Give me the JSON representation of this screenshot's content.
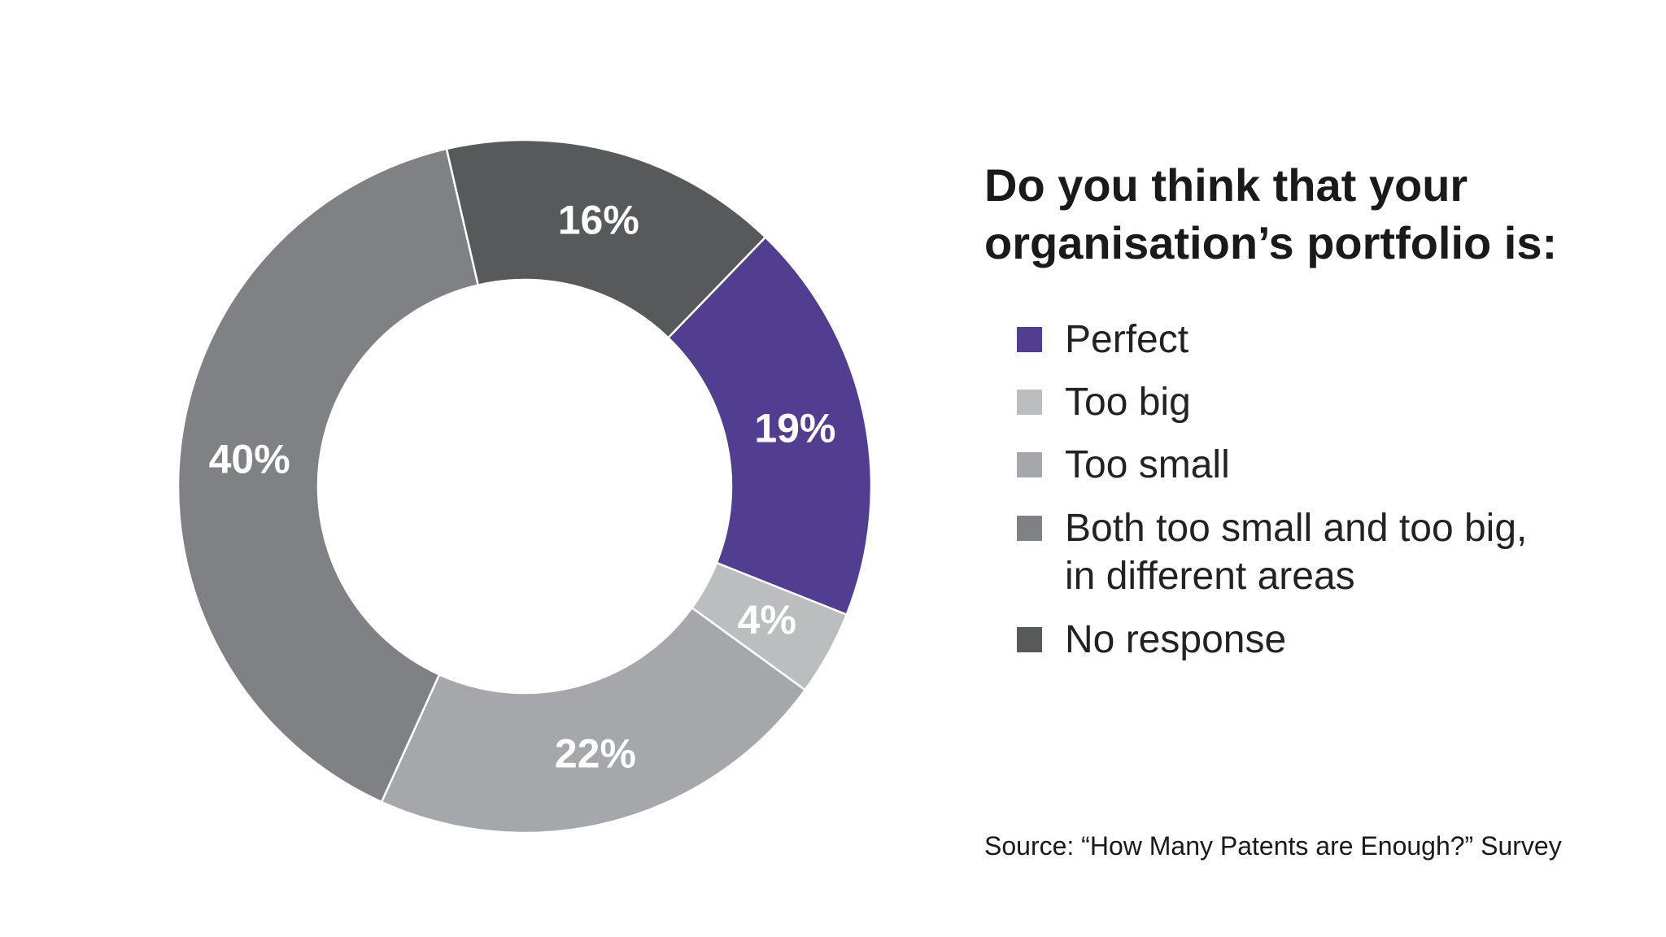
{
  "chart_data": {
    "type": "pie",
    "style": "donut",
    "title": "Do you think that your organisation’s portfolio is:",
    "legend_placement": "right",
    "slices": [
      {
        "label": "Perfect",
        "value": 19,
        "value_label": "19%",
        "color": "#523e91"
      },
      {
        "label": "Too big",
        "value": 4,
        "value_label": "4%",
        "color": "#bcbdbf"
      },
      {
        "label": "Too small",
        "value": 22,
        "value_label": "22%",
        "color": "#a6a7aa"
      },
      {
        "label": "Both too small and too big, in different areas",
        "value": 40,
        "value_label": "40%",
        "color": "#808184"
      },
      {
        "label": "No response",
        "value": 16,
        "value_label": "16%",
        "color": "#58595b"
      }
    ]
  },
  "question": {
    "line1": "Do you think that your",
    "line2": "organisation’s portfolio is:"
  },
  "legend": [
    {
      "lines": [
        "Perfect"
      ],
      "color": "#523e91"
    },
    {
      "lines": [
        "Too big"
      ],
      "color": "#bcbdbf"
    },
    {
      "lines": [
        "Too small"
      ],
      "color": "#a6a7aa"
    },
    {
      "lines": [
        "Both too small and too big,",
        "in different areas"
      ],
      "color": "#808184"
    },
    {
      "lines": [
        "No response"
      ],
      "color": "#58595b"
    }
  ],
  "source": "Source: “How Many Patents are Enough?” Survey"
}
